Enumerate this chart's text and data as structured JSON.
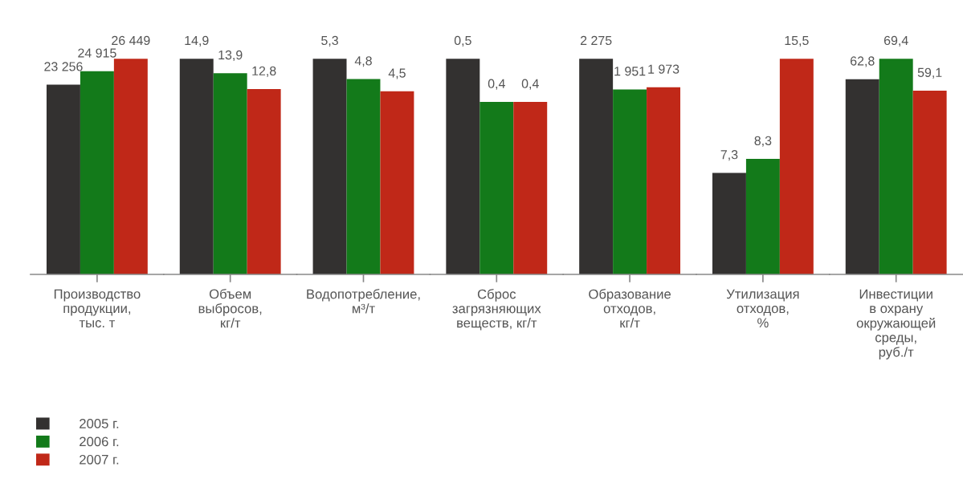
{
  "chart_data": [
    {
      "type": "bar",
      "categories": [
        "Производство\nпродукции,\nтыс. т"
      ],
      "tick_labels": "x",
      "legend": "bottom left",
      "series": [
        {
          "name": "2005 г.",
          "color": "#333130",
          "values": [
            23256
          ],
          "value_labels": [
            "23 256"
          ]
        },
        {
          "name": "2006 г.",
          "color": "#137a1a",
          "values": [
            24915
          ],
          "value_labels": [
            "24 915"
          ]
        },
        {
          "name": "2007 г.",
          "color": "#c02818",
          "values": [
            26449
          ],
          "value_labels": [
            "26 449"
          ]
        }
      ]
    },
    {
      "type": "bar",
      "categories": [
        "Объем\nвыбросов,\nкг/т"
      ],
      "tick_labels": "x",
      "series": [
        {
          "color": "#333130",
          "values": [
            14.9
          ],
          "value_labels": [
            "14,9"
          ]
        },
        {
          "color": "#137a1a",
          "values": [
            13.9
          ],
          "value_labels": [
            "13,9"
          ]
        },
        {
          "color": "#c02818",
          "values": [
            12.8
          ],
          "value_labels": [
            "12,8"
          ]
        }
      ]
    },
    {
      "type": "bar",
      "categories": [
        "Водопотребление,\nм³/т"
      ],
      "tick_labels": "x",
      "series": [
        {
          "color": "#333130",
          "values": [
            5.3
          ],
          "value_labels": [
            "5,3"
          ]
        },
        {
          "color": "#137a1a",
          "values": [
            4.8
          ],
          "value_labels": [
            "4,8"
          ]
        },
        {
          "color": "#c02818",
          "values": [
            4.5
          ],
          "value_labels": [
            "4,5"
          ]
        }
      ]
    },
    {
      "type": "bar",
      "categories": [
        "Сброс\nзагрязняющих\nвеществ, кг/т"
      ],
      "tick_labels": "x",
      "series": [
        {
          "color": "#333130",
          "values": [
            0.5
          ],
          "value_labels": [
            "0,5"
          ]
        },
        {
          "color": "#137a1a",
          "values": [
            0.4
          ],
          "value_labels": [
            "0,4"
          ]
        },
        {
          "color": "#c02818",
          "values": [
            0.4
          ],
          "value_labels": [
            "0,4"
          ]
        }
      ]
    },
    {
      "type": "bar",
      "categories": [
        "Образование\nотходов,\nкг/т"
      ],
      "tick_labels": "x",
      "series": [
        {
          "color": "#333130",
          "values": [
            2275
          ],
          "value_labels": [
            "2 275"
          ]
        },
        {
          "color": "#137a1a",
          "values": [
            1951
          ],
          "value_labels": [
            "1 951"
          ]
        },
        {
          "color": "#c02818",
          "values": [
            1973
          ],
          "value_labels": [
            "1 973"
          ]
        }
      ]
    },
    {
      "type": "bar",
      "categories": [
        "Утилизация\nотходов,\n%"
      ],
      "tick_labels": "x",
      "series": [
        {
          "color": "#333130",
          "values": [
            7.3
          ],
          "value_labels": [
            "7,3"
          ]
        },
        {
          "color": "#137a1a",
          "values": [
            8.3
          ],
          "value_labels": [
            "8,3"
          ]
        },
        {
          "color": "#c02818",
          "values": [
            15.5
          ],
          "value_labels": [
            "15,5"
          ]
        }
      ]
    },
    {
      "type": "bar",
      "categories": [
        "Инвестиции\nв охрану\nокружающей\nсреды,\nруб./т"
      ],
      "tick_labels": "x",
      "series": [
        {
          "color": "#333130",
          "values": [
            62.8
          ],
          "value_labels": [
            "62,8"
          ]
        },
        {
          "color": "#137a1a",
          "values": [
            69.4
          ],
          "value_labels": [
            "69,4"
          ]
        },
        {
          "color": "#c02818",
          "values": [
            59.1
          ],
          "value_labels": [
            "59,1"
          ]
        }
      ]
    }
  ]
}
